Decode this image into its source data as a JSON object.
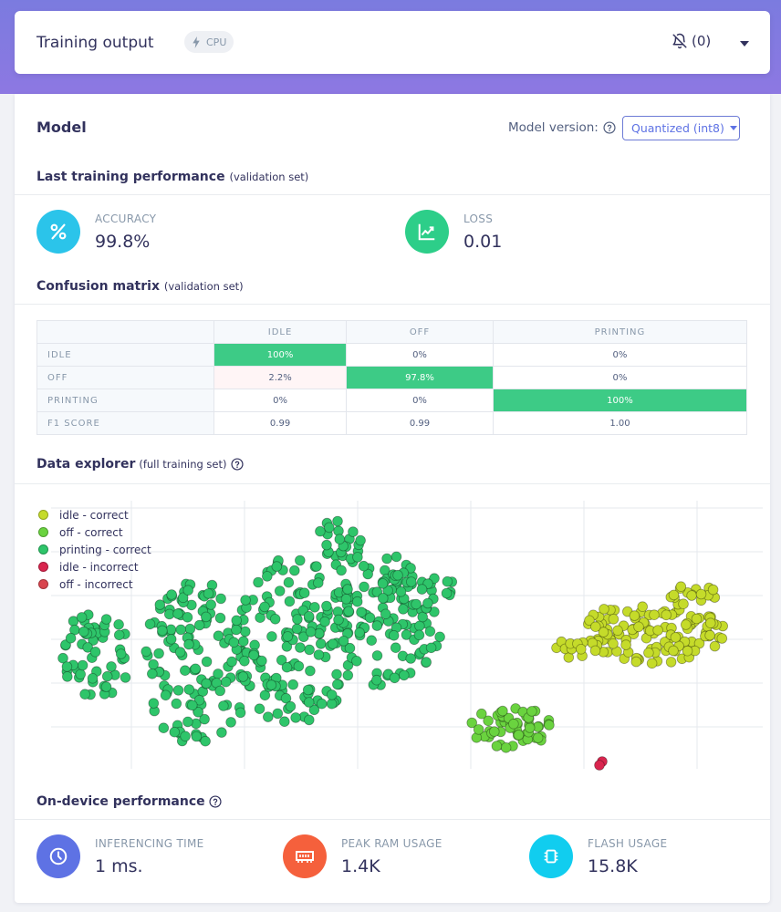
{
  "header": {
    "title": "Training output",
    "badge": "CPU",
    "notifications": "(0)"
  },
  "model": {
    "title": "Model",
    "version_label": "Model version:",
    "version_selected": "Quantized (int8)"
  },
  "performance": {
    "title": "Last training performance",
    "subtitle": "(validation set)",
    "accuracy_label": "ACCURACY",
    "accuracy_value": "99.8%",
    "loss_label": "LOSS",
    "loss_value": "0.01"
  },
  "confusion": {
    "title": "Confusion matrix",
    "subtitle": "(validation set)",
    "columns": [
      "IDLE",
      "OFF",
      "PRINTING"
    ],
    "rows": [
      {
        "label": "IDLE",
        "cells": [
          "100%",
          "0%",
          "0%"
        ]
      },
      {
        "label": "OFF",
        "cells": [
          "2.2%",
          "97.8%",
          "0%"
        ]
      },
      {
        "label": "PRINTING",
        "cells": [
          "0%",
          "0%",
          "100%"
        ]
      },
      {
        "label": "F1 SCORE",
        "cells": [
          "0.99",
          "0.99",
          "1.00"
        ]
      }
    ]
  },
  "explorer": {
    "title": "Data explorer",
    "subtitle": "(full training set)",
    "legend": [
      {
        "label": "idle - correct",
        "color": "#c5db2a"
      },
      {
        "label": "off - correct",
        "color": "#6ad33f"
      },
      {
        "label": "printing - correct",
        "color": "#2ec56a"
      },
      {
        "label": "idle - incorrect",
        "color": "#d9254e"
      },
      {
        "label": "off - incorrect",
        "color": "#d9454e"
      }
    ]
  },
  "ondevice": {
    "title": "On-device performance",
    "inferencing_label": "INFERENCING TIME",
    "inferencing_value": "1 ms.",
    "ram_label": "PEAK RAM USAGE",
    "ram_value": "1.4K",
    "flash_label": "FLASH USAGE",
    "flash_value": "15.8K"
  },
  "colors": {
    "accuracy_icon": "#2bc4ea",
    "loss_icon": "#2dce89",
    "time_icon": "#5e72e4",
    "ram_icon": "#f5603c",
    "flash_icon": "#11cdef"
  }
}
